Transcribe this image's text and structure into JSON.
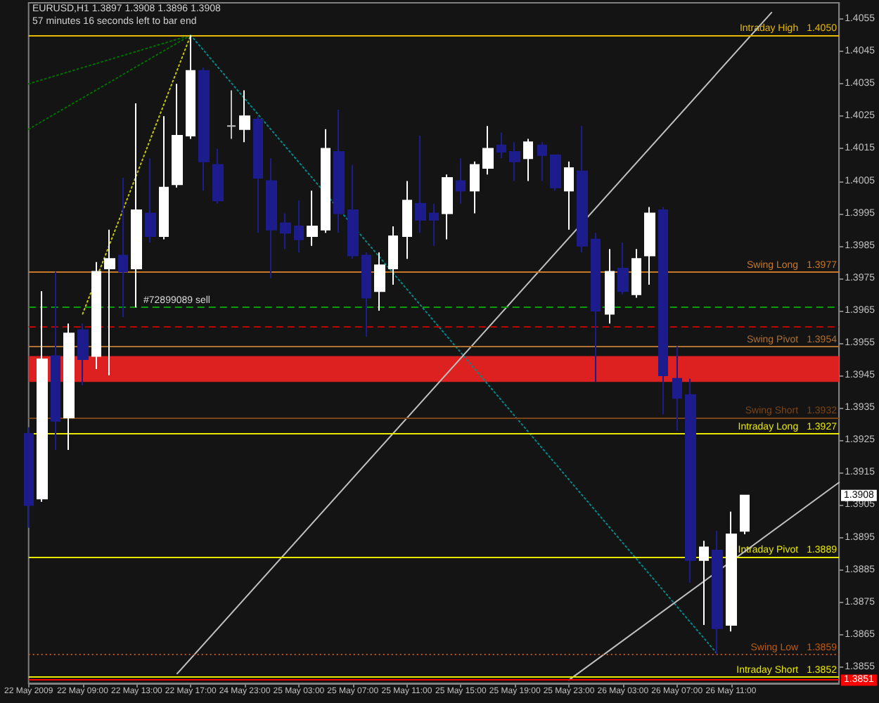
{
  "chart_data": {
    "type": "candlestick",
    "title": "EURUSD,H1 1.3897 1.3908 1.3896 1.3908",
    "subtitle": "57 minutes 16 seconds left to bar end",
    "categories": [
      "22 May 2009",
      null,
      null,
      null,
      "22 May 09:00",
      null,
      null,
      null,
      "22 May 13:00",
      null,
      null,
      null,
      "22 May 17:00",
      null,
      null,
      null,
      "24 May 23:00",
      null,
      null,
      null,
      "25 May 03:00",
      null,
      null,
      null,
      "25 May 07:00",
      null,
      null,
      null,
      "25 May 11:00",
      null,
      null,
      null,
      "25 May 15:00",
      null,
      null,
      null,
      "25 May 19:00",
      null,
      null,
      null,
      "25 May 23:00",
      null,
      null,
      null,
      "26 May 03:00",
      null,
      null,
      null,
      "26 May 07:00",
      null,
      null,
      null,
      "26 May 11:00",
      null,
      null,
      null,
      null,
      null,
      null,
      null,
      null
    ],
    "ohlc": [
      [
        1.3927,
        1.3929,
        1.3898,
        1.3905
      ],
      [
        1.3907,
        1.3971,
        1.3906,
        1.395
      ],
      [
        1.3951,
        1.3977,
        1.3922,
        1.3931
      ],
      [
        1.3932,
        1.3961,
        1.3922,
        1.3958
      ],
      [
        1.3959,
        1.3961,
        1.3942,
        1.395
      ],
      [
        1.3951,
        1.398,
        1.3947,
        1.3977
      ],
      [
        1.3978,
        1.399,
        1.3945,
        1.3981
      ],
      [
        1.3982,
        1.4006,
        1.3963,
        1.3977
      ],
      [
        1.3978,
        1.4029,
        1.3966,
        1.3996
      ],
      [
        1.3995,
        1.4012,
        1.3986,
        1.3988
      ],
      [
        1.3988,
        1.4025,
        1.3987,
        1.4003
      ],
      [
        1.4004,
        1.4035,
        1.4003,
        1.4019
      ],
      [
        1.4019,
        1.405,
        1.4018,
        1.4039
      ],
      [
        1.4039,
        1.404,
        1.4002,
        1.4011
      ],
      [
        1.401,
        1.4015,
        1.3998,
        1.3999
      ],
      [
        1.4022,
        1.4033,
        1.4018,
        1.4022
      ],
      [
        1.4021,
        1.4033,
        1.4017,
        1.4025
      ],
      [
        1.4024,
        1.4025,
        1.3989,
        1.4006
      ],
      [
        1.4005,
        1.4012,
        1.3975,
        1.399
      ],
      [
        1.3992,
        1.3995,
        1.3984,
        1.3989
      ],
      [
        1.3991,
        1.3999,
        1.3983,
        1.3987
      ],
      [
        1.3988,
        1.4002,
        1.3985,
        1.3991
      ],
      [
        1.399,
        1.4021,
        1.3989,
        1.4015
      ],
      [
        1.4014,
        1.4027,
        1.3989,
        1.3995
      ],
      [
        1.3996,
        1.401,
        1.3981,
        1.3982
      ],
      [
        1.3982,
        1.3983,
        1.3957,
        1.3969
      ],
      [
        1.3971,
        1.3983,
        1.3965,
        1.3979
      ],
      [
        1.3978,
        1.3991,
        1.3973,
        1.3988
      ],
      [
        1.3988,
        1.4005,
        1.3981,
        1.3999
      ],
      [
        1.3998,
        1.4019,
        1.3989,
        1.3993
      ],
      [
        1.3995,
        1.3998,
        1.3985,
        1.3993
      ],
      [
        1.3995,
        1.4007,
        1.3987,
        1.4006
      ],
      [
        1.4005,
        1.4012,
        1.3998,
        1.4002
      ],
      [
        1.4002,
        1.4011,
        1.3995,
        1.401
      ],
      [
        1.4009,
        1.4022,
        1.4007,
        1.4015
      ],
      [
        1.4016,
        1.402,
        1.4012,
        1.4014
      ],
      [
        1.4014,
        1.4017,
        1.4005,
        1.4011
      ],
      [
        1.4012,
        1.4018,
        1.4005,
        1.4017
      ],
      [
        1.4016,
        1.4017,
        1.4005,
        1.4013
      ],
      [
        1.4013,
        1.4013,
        1.4002,
        1.4003
      ],
      [
        1.4002,
        1.4011,
        1.399,
        1.4009
      ],
      [
        1.4008,
        1.4022,
        1.3983,
        1.3985
      ],
      [
        1.3987,
        1.3989,
        1.3943,
        1.3965
      ],
      [
        1.3964,
        1.3984,
        1.3961,
        1.3977
      ],
      [
        1.3978,
        1.3986,
        1.397,
        1.3971
      ],
      [
        1.397,
        1.3984,
        1.3969,
        1.3981
      ],
      [
        1.3982,
        1.3997,
        1.3973,
        1.3995
      ],
      [
        1.3996,
        1.3997,
        1.3933,
        1.3945
      ],
      [
        1.3944,
        1.3954,
        1.3928,
        1.3938
      ],
      [
        1.3939,
        1.3944,
        1.3881,
        1.3888
      ],
      [
        1.3888,
        1.3894,
        1.3868,
        1.3892
      ],
      [
        1.3891,
        1.3897,
        1.3859,
        1.3867
      ],
      [
        1.3868,
        1.3903,
        1.3866,
        1.3896
      ],
      [
        1.3897,
        1.3908,
        1.3896,
        1.3908
      ],
      null,
      null,
      null,
      null,
      null,
      null,
      null
    ],
    "colors": [
      "#1c1c8c",
      "#ffffff",
      "#1c1c8c",
      "#ffffff",
      "#1c1c8c",
      "#ffffff",
      "#ffffff",
      "#1c1c8c",
      "#ffffff",
      "#1c1c8c",
      "#ffffff",
      "#ffffff",
      "#ffffff",
      "#1c1c8c",
      "#1c1c8c",
      "#c0c0c0",
      "#ffffff",
      "#1c1c8c",
      "#1c1c8c",
      "#1c1c8c",
      "#1c1c8c",
      "#ffffff",
      "#ffffff",
      "#1c1c8c",
      "#1c1c8c",
      "#1c1c8c",
      "#ffffff",
      "#ffffff",
      "#ffffff",
      "#1c1c8c",
      "#1c1c8c",
      "#ffffff",
      "#1c1c8c",
      "#ffffff",
      "#ffffff",
      "#1c1c8c",
      "#1c1c8c",
      "#ffffff",
      "#1c1c8c",
      "#1c1c8c",
      "#ffffff",
      "#1c1c8c",
      "#1c1c8c",
      "#ffffff",
      "#1c1c8c",
      "#ffffff",
      "#ffffff",
      "#1c1c8c",
      "#1c1c8c",
      "#1c1c8c",
      "#ffffff",
      "#1c1c8c",
      "#ffffff",
      "#ffffff",
      null,
      null,
      null,
      null,
      null,
      null,
      null
    ],
    "series": [
      {
        "type": "line",
        "color": "#c8c800",
        "line_style": "dotted",
        "values": [
          null,
          null,
          null,
          null,
          1.3964,
          null,
          null,
          null,
          null,
          null,
          null,
          null,
          1.405,
          null,
          null,
          null,
          null,
          null,
          null,
          null,
          null,
          null,
          null,
          null,
          null,
          null,
          null,
          null,
          null,
          null,
          null,
          null,
          null,
          null,
          null,
          null,
          null,
          null,
          null,
          null,
          null,
          null,
          null,
          null,
          null,
          null,
          null,
          null,
          null,
          null,
          null,
          null,
          null,
          null,
          null,
          null,
          null,
          null,
          null,
          null,
          null
        ]
      },
      {
        "type": "line",
        "color": "#007000",
        "line_style": "dotted",
        "values": [
          1.4035,
          null,
          null,
          null,
          null,
          null,
          null,
          null,
          null,
          null,
          null,
          null,
          1.405,
          null,
          null,
          null,
          null,
          null,
          null,
          null,
          null,
          null,
          null,
          null,
          null,
          null,
          null,
          null,
          null,
          null,
          null,
          null,
          null,
          null,
          null,
          null,
          null,
          null,
          null,
          null,
          null,
          null,
          null,
          null,
          null,
          null,
          null,
          null,
          null,
          null,
          null,
          null,
          null,
          null,
          null,
          null,
          null,
          null,
          null,
          null,
          null
        ]
      },
      {
        "type": "line",
        "color": "#007000",
        "line_style": "dotted",
        "values": [
          1.4021,
          null,
          null,
          null,
          null,
          null,
          null,
          null,
          null,
          null,
          null,
          null,
          1.405,
          null,
          null,
          null,
          null,
          null,
          null,
          null,
          null,
          null,
          null,
          null,
          null,
          null,
          null,
          null,
          null,
          null,
          null,
          null,
          null,
          null,
          null,
          null,
          null,
          null,
          null,
          null,
          null,
          null,
          null,
          null,
          null,
          null,
          null,
          null,
          null,
          null,
          null,
          null,
          null,
          null,
          null,
          null,
          null,
          null,
          null,
          null,
          null
        ]
      },
      {
        "type": "line",
        "color": "#008b8b",
        "line_style": "dotted",
        "values": [
          null,
          null,
          null,
          null,
          null,
          null,
          null,
          null,
          null,
          null,
          null,
          null,
          1.405,
          null,
          null,
          null,
          null,
          null,
          null,
          null,
          null,
          null,
          null,
          null,
          null,
          null,
          null,
          null,
          null,
          null,
          null,
          null,
          null,
          null,
          null,
          null,
          null,
          null,
          null,
          null,
          null,
          null,
          null,
          null,
          null,
          null,
          null,
          null,
          null,
          null,
          null,
          1.3859,
          null,
          null,
          null,
          null,
          null,
          null,
          null,
          null,
          null
        ]
      },
      {
        "type": "line",
        "color": "#c0c0c0",
        "line_style": "solid",
        "values": [
          null,
          null,
          null,
          null,
          null,
          null,
          null,
          null,
          null,
          null,
          null,
          1.3853,
          null,
          null,
          null,
          null,
          null,
          null,
          null,
          null,
          null,
          null,
          null,
          null,
          null,
          null,
          null,
          null,
          null,
          null,
          null,
          null,
          null,
          null,
          null,
          null,
          null,
          null,
          null,
          null,
          null,
          null,
          null,
          null,
          null,
          null,
          null,
          null,
          null,
          null,
          null,
          null,
          null,
          null,
          null,
          1.4057,
          null,
          null,
          null,
          null,
          null
        ]
      },
      {
        "type": "line",
        "color": "#c0c0c0",
        "line_style": "solid",
        "values": [
          null,
          null,
          null,
          null,
          null,
          null,
          null,
          null,
          null,
          null,
          null,
          null,
          null,
          null,
          null,
          null,
          null,
          null,
          null,
          null,
          null,
          null,
          null,
          null,
          null,
          null,
          null,
          null,
          null,
          null,
          null,
          null,
          null,
          null,
          null,
          null,
          null,
          null,
          null,
          null,
          1.3851,
          null,
          null,
          null,
          null,
          null,
          null,
          null,
          null,
          null,
          null,
          null,
          null,
          null,
          null,
          null,
          null,
          null,
          null,
          null,
          1.3912
        ]
      }
    ],
    "ylim": [
      1.385,
      1.406
    ],
    "yticks": [
      1.3855,
      1.3865,
      1.3875,
      1.3885,
      1.3895,
      1.3905,
      1.3915,
      1.3925,
      1.3935,
      1.3945,
      1.3955,
      1.3965,
      1.3975,
      1.3985,
      1.3995,
      1.4005,
      1.4015,
      1.4025,
      1.4035,
      1.4045,
      1.4055
    ],
    "ref_lines": [
      {
        "axis": "y",
        "value": 1.405,
        "label": "Intraday High",
        "color": "#e6b800"
      },
      {
        "axis": "y",
        "value": 1.3977,
        "label": "Swing Long",
        "color": "#c87828"
      },
      {
        "axis": "y",
        "value": 1.3966,
        "label": "#72899089 sell",
        "color": "#00a000",
        "line_style": "dashed"
      },
      {
        "axis": "y",
        "value": 1.396,
        "color": "#c00000",
        "line_style": "dashed"
      },
      {
        "axis": "y",
        "value": 1.3954,
        "label": "Swing Pivot",
        "color": "#b07030"
      },
      {
        "axis": "y",
        "value": 1.3932,
        "label": "Swing Short",
        "color": "#7a4416"
      },
      {
        "axis": "y",
        "value": 1.3927,
        "label": "Intraday Long",
        "color": "#e8e800"
      },
      {
        "axis": "y",
        "value": 1.3889,
        "label": "Intraday Pivot",
        "color": "#e8e800"
      },
      {
        "axis": "y",
        "value": 1.3859,
        "label": "Swing Low",
        "color": "#c05a10",
        "line_style": "dotted"
      },
      {
        "axis": "y",
        "value": 1.3852,
        "label": "Intraday Short",
        "color": "#e8e800"
      },
      {
        "axis": "y",
        "value": 1.3851,
        "color": "#ff0000"
      }
    ],
    "bands": [
      {
        "axis": "y",
        "from": 1.3943,
        "to": 1.3951,
        "color": "#dd2020"
      }
    ],
    "annotations": [
      {
        "text": "1.4050",
        "y": 1.405
      },
      {
        "text": "1.3977",
        "y": 1.3977
      },
      {
        "text": "1.3954",
        "y": 1.3954
      },
      {
        "text": "1.3932",
        "y": 1.3932
      },
      {
        "text": "1.3927",
        "y": 1.3927
      },
      {
        "text": "1.3889",
        "y": 1.3889
      },
      {
        "text": "1.3859",
        "y": 1.3859
      },
      {
        "text": "1.3852",
        "y": 1.3852
      },
      {
        "text": "1.3908",
        "y": 1.3908
      },
      {
        "text": "1.3851",
        "y": 1.3851
      }
    ]
  }
}
